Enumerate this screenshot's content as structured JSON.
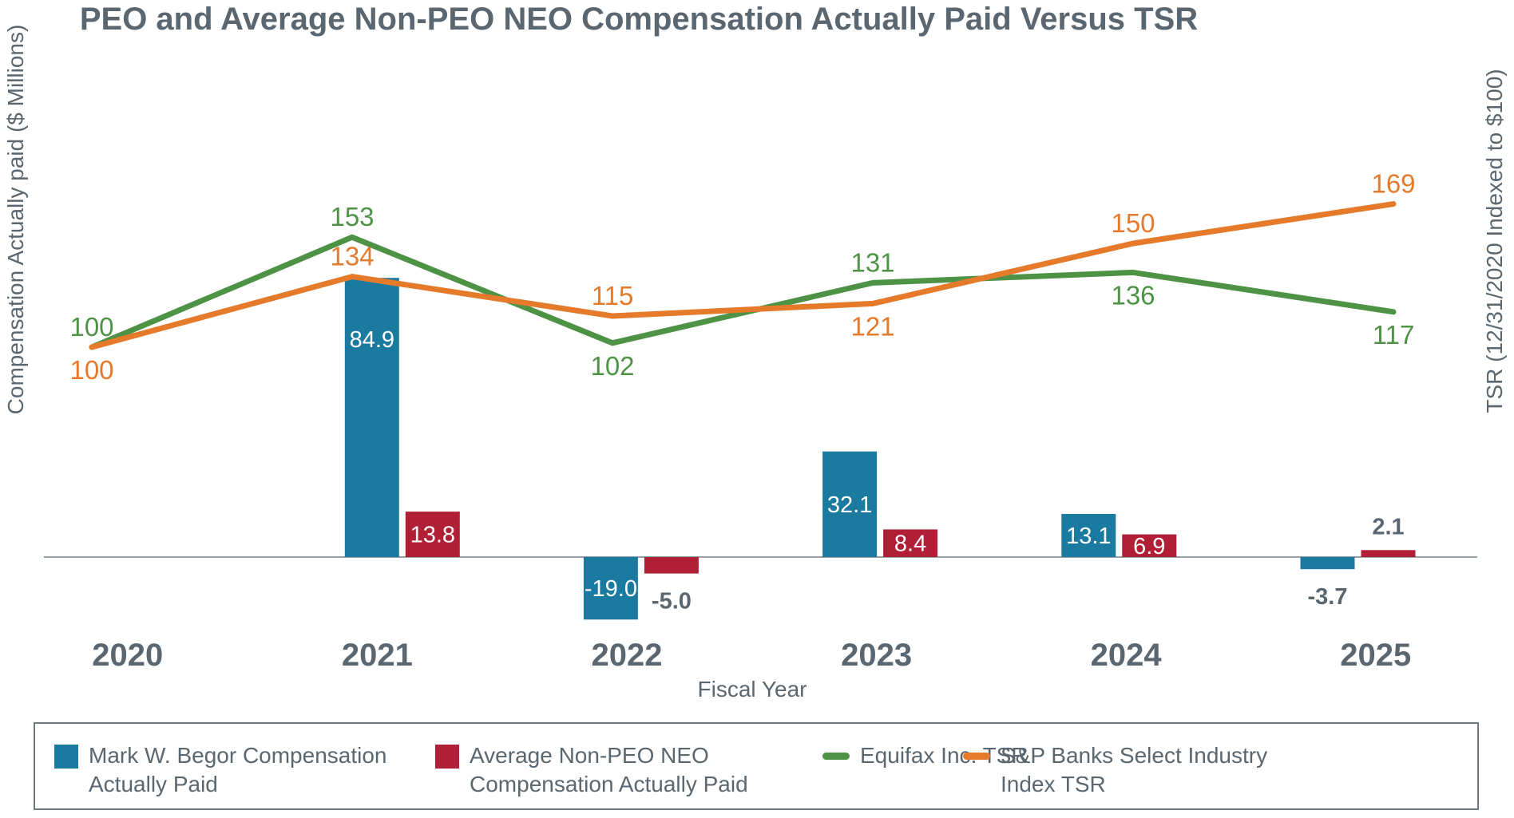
{
  "title": "PEO and Average Non-PEO NEO Compensation Actually Paid Versus TSR",
  "colors": {
    "peo_bar": "#1b7aa0",
    "neo_bar": "#b01f35",
    "equifax_line": "#4e9345",
    "sp_line": "#e57a2b",
    "text": "#5b6770",
    "bar_label": "#ffffff",
    "axis_line": "#97a0a7",
    "legend_border": "#6d7882"
  },
  "chart_data": {
    "type": "combo bar+line",
    "categories": [
      "2020",
      "2021",
      "2022",
      "2023",
      "2024",
      "2025"
    ],
    "series": [
      {
        "name": "Mark W. Begor Compensation Actually Paid",
        "type": "bar",
        "axis": "left",
        "values": [
          null,
          84.9,
          -19.0,
          32.1,
          13.1,
          -3.7
        ]
      },
      {
        "name": "Average Non-PEO NEO Compensation Actually Paid",
        "type": "bar",
        "axis": "left",
        "values": [
          null,
          13.8,
          -5.0,
          8.4,
          6.9,
          2.1
        ]
      },
      {
        "name": "Equifax Inc. TSR",
        "type": "line",
        "axis": "right",
        "values": [
          100,
          153,
          102,
          131,
          136,
          117
        ],
        "label_side": [
          "above",
          "above",
          "below",
          "above",
          "below",
          "below"
        ]
      },
      {
        "name": "S&P Banks Select Industry Index TSR",
        "type": "line",
        "axis": "right",
        "values": [
          100,
          134,
          115,
          121,
          150,
          169
        ],
        "label_side": [
          "below",
          "above",
          "above",
          "below",
          "above",
          "above"
        ]
      }
    ],
    "left_axis": {
      "title": "Compensation Actually paid ($ Millions)"
    },
    "right_axis": {
      "title": "TSR (12/31/2020 Indexed to $100)"
    },
    "x_axis": {
      "title": "Fiscal Year"
    },
    "gridlines": false,
    "legend_position": "bottom"
  },
  "legend": {
    "items": [
      {
        "swatch": "square",
        "color_key": "peo_bar",
        "lines": [
          "Mark W. Begor Compensation",
          "Actually Paid"
        ]
      },
      {
        "swatch": "square",
        "color_key": "neo_bar",
        "lines": [
          "Average Non-PEO NEO",
          "Compensation Actually Paid"
        ]
      },
      {
        "swatch": "line",
        "color_key": "equifax_line",
        "lines": [
          "Equifax Inc. TSR"
        ]
      },
      {
        "swatch": "line",
        "color_key": "sp_line",
        "lines": [
          "S&P Banks Select Industry",
          "Index TSR"
        ]
      }
    ]
  }
}
